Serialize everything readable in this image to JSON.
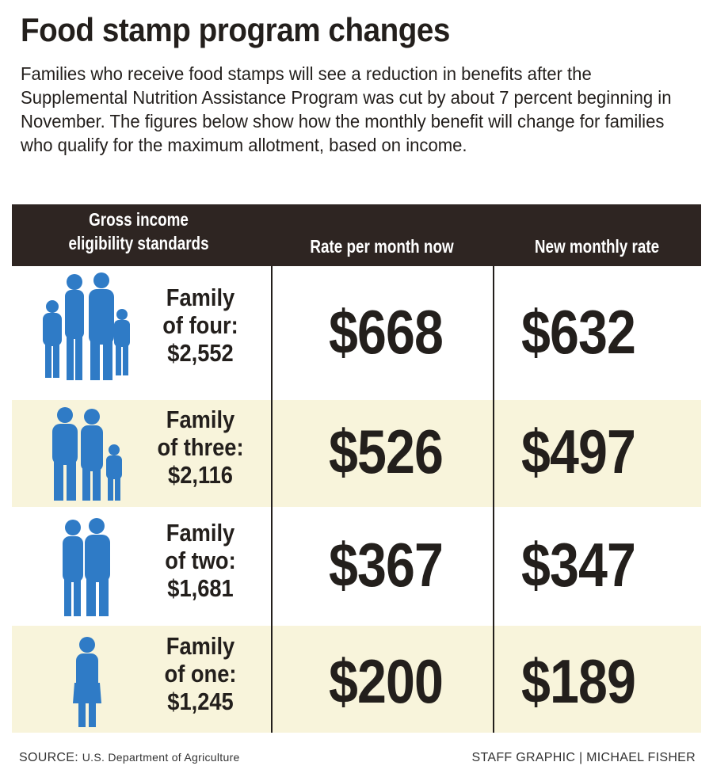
{
  "title": "Food stamp program changes",
  "intro": "Families who receive food stamps will see a reduction in benefits after the Supplemental Nutrition Assistance Program was cut by about 7 percent beginning in November. The figures below show how the monthly benefit will change for families who qualify for the maximum allotment, based on income.",
  "colors": {
    "header": "#2e2522",
    "icon": "#2f7bc6",
    "stripe": "#f8f4db"
  },
  "chart_data": {
    "type": "table",
    "columns": [
      "Gross income eligibility standards",
      "Rate per month now",
      "New monthly rate"
    ],
    "rows": [
      {
        "family_line1": "Family",
        "family_line2": "of four:",
        "income": "$2,552",
        "now": "$668",
        "new": "$632",
        "icon": "family-of-four-icon"
      },
      {
        "family_line1": "Family",
        "family_line2": "of three:",
        "income": "$2,116",
        "now": "$526",
        "new": "$497",
        "icon": "family-of-three-icon"
      },
      {
        "family_line1": "Family",
        "family_line2": "of two:",
        "income": "$1,681",
        "now": "$367",
        "new": "$347",
        "icon": "family-of-two-icon"
      },
      {
        "family_line1": "Family",
        "family_line2": "of one:",
        "income": "$1,245",
        "now": "$200",
        "new": "$189",
        "icon": "person-icon"
      }
    ]
  },
  "header": {
    "col1_line1": "Gross income",
    "col1_line2": "eligibility standards",
    "col2": "Rate per month now",
    "col3": "New monthly rate"
  },
  "footer": {
    "source_label": "SOURCE:",
    "source": "U.S. Department of Agriculture",
    "credit": "STAFF GRAPHIC | MICHAEL FISHER"
  }
}
